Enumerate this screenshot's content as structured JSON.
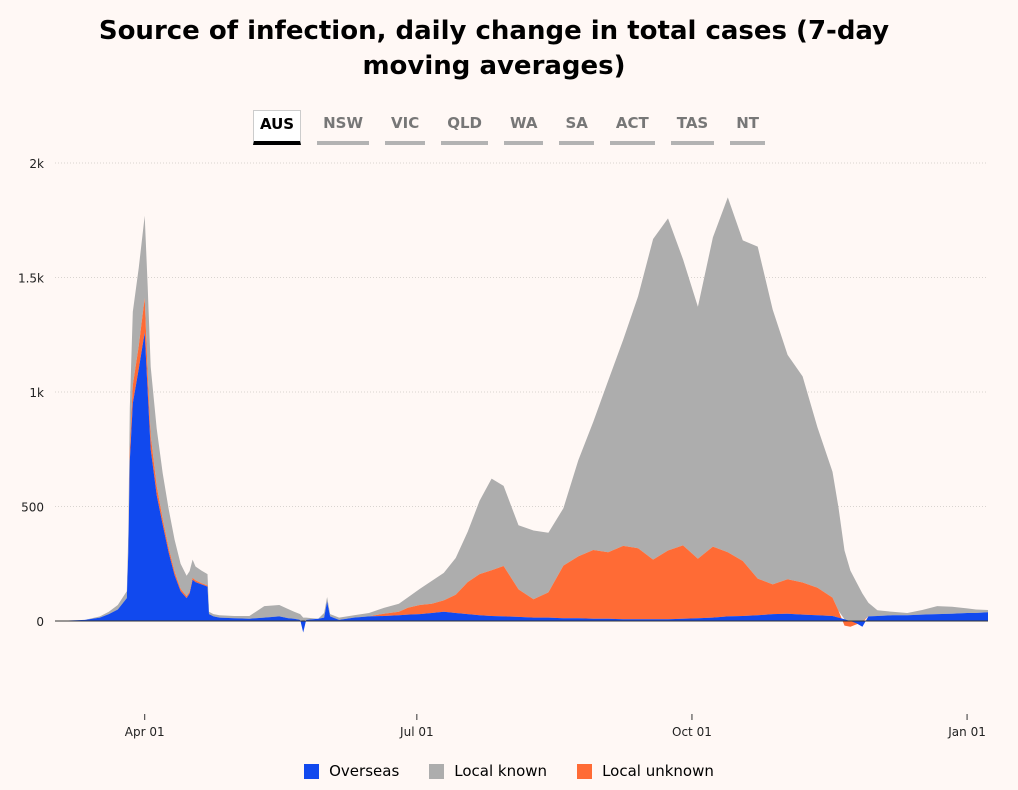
{
  "colors": {
    "overseas": "#1149ee",
    "local_known": "#adadad",
    "local_unknown": "#ff6b35",
    "grid": "#d9d4d0",
    "axis": "#222222"
  },
  "tabs": [
    {
      "label": "AUS",
      "active": true
    },
    {
      "label": "NSW",
      "active": false
    },
    {
      "label": "VIC",
      "active": false
    },
    {
      "label": "QLD",
      "active": false
    },
    {
      "label": "WA",
      "active": false
    },
    {
      "label": "SA",
      "active": false
    },
    {
      "label": "ACT",
      "active": false
    },
    {
      "label": "TAS",
      "active": false
    },
    {
      "label": "NT",
      "active": false
    }
  ],
  "chart_data": {
    "type": "area",
    "title": "Source of infection, daily change in total cases (7-day moving averages)",
    "xlabel": "",
    "ylabel": "",
    "ylim": [
      -220,
      2000
    ],
    "xlim_days": [
      0,
      312
    ],
    "y_ticks": [
      {
        "value": 0,
        "label": "0"
      },
      {
        "value": 500,
        "label": "500"
      },
      {
        "value": 1000,
        "label": "1k"
      },
      {
        "value": 1500,
        "label": "1.5k"
      },
      {
        "value": 2000,
        "label": "2k"
      }
    ],
    "x_ticks": [
      {
        "day": 30,
        "label": "Apr 01"
      },
      {
        "day": 121,
        "label": "Jul 01"
      },
      {
        "day": 213,
        "label": "Oct 01"
      },
      {
        "day": 305,
        "label": "Jan 01"
      }
    ],
    "x_day_label": "days since Mar 02",
    "series": [
      {
        "name": "Overseas",
        "key": "overseas",
        "points": [
          [
            0,
            0
          ],
          [
            10,
            5
          ],
          [
            15,
            15
          ],
          [
            18,
            30
          ],
          [
            21,
            50
          ],
          [
            24,
            100
          ],
          [
            24.5,
            300
          ],
          [
            25,
            700
          ],
          [
            26,
            950
          ],
          [
            28,
            1100
          ],
          [
            30,
            1260
          ],
          [
            31,
            1000
          ],
          [
            32,
            750
          ],
          [
            34,
            550
          ],
          [
            36,
            420
          ],
          [
            38,
            300
          ],
          [
            40,
            200
          ],
          [
            42,
            130
          ],
          [
            44,
            100
          ],
          [
            45,
            120
          ],
          [
            46,
            180
          ],
          [
            47,
            170
          ],
          [
            49,
            160
          ],
          [
            51,
            150
          ],
          [
            51.5,
            30
          ],
          [
            53,
            20
          ],
          [
            55,
            15
          ],
          [
            60,
            12
          ],
          [
            65,
            10
          ],
          [
            70,
            15
          ],
          [
            75,
            20
          ],
          [
            78,
            12
          ],
          [
            80,
            10
          ],
          [
            82,
            5
          ],
          [
            83,
            -50
          ],
          [
            84,
            5
          ],
          [
            88,
            10
          ],
          [
            90,
            15
          ],
          [
            91,
            85
          ],
          [
            92,
            20
          ],
          [
            93,
            15
          ],
          [
            95,
            5
          ],
          [
            100,
            15
          ],
          [
            105,
            20
          ],
          [
            110,
            22
          ],
          [
            115,
            25
          ],
          [
            118,
            28
          ],
          [
            122,
            30
          ],
          [
            126,
            35
          ],
          [
            130,
            40
          ],
          [
            134,
            35
          ],
          [
            138,
            30
          ],
          [
            142,
            25
          ],
          [
            146,
            22
          ],
          [
            150,
            20
          ],
          [
            155,
            18
          ],
          [
            160,
            15
          ],
          [
            165,
            15
          ],
          [
            170,
            12
          ],
          [
            175,
            12
          ],
          [
            180,
            10
          ],
          [
            185,
            10
          ],
          [
            190,
            8
          ],
          [
            195,
            8
          ],
          [
            200,
            8
          ],
          [
            205,
            8
          ],
          [
            210,
            10
          ],
          [
            215,
            12
          ],
          [
            220,
            15
          ],
          [
            225,
            20
          ],
          [
            230,
            22
          ],
          [
            235,
            25
          ],
          [
            240,
            30
          ],
          [
            245,
            32
          ],
          [
            250,
            28
          ],
          [
            255,
            25
          ],
          [
            260,
            22
          ],
          [
            262,
            15
          ],
          [
            264,
            8
          ],
          [
            266,
            0
          ],
          [
            268,
            -10
          ],
          [
            270,
            -25
          ],
          [
            272,
            20
          ],
          [
            275,
            22
          ],
          [
            280,
            25
          ],
          [
            285,
            25
          ],
          [
            290,
            28
          ],
          [
            295,
            30
          ],
          [
            300,
            32
          ],
          [
            305,
            35
          ],
          [
            308,
            35
          ],
          [
            312,
            38
          ]
        ]
      },
      {
        "name": "Local known",
        "key": "local_known",
        "points": [
          [
            0,
            0
          ],
          [
            10,
            0
          ],
          [
            15,
            5
          ],
          [
            18,
            10
          ],
          [
            21,
            20
          ],
          [
            24,
            30
          ],
          [
            24.5,
            80
          ],
          [
            25,
            180
          ],
          [
            26,
            320
          ],
          [
            28,
            340
          ],
          [
            30,
            360
          ],
          [
            31,
            380
          ],
          [
            32,
            300
          ],
          [
            34,
            250
          ],
          [
            36,
            200
          ],
          [
            38,
            170
          ],
          [
            40,
            140
          ],
          [
            42,
            110
          ],
          [
            44,
            90
          ],
          [
            45,
            90
          ],
          [
            46,
            80
          ],
          [
            47,
            60
          ],
          [
            49,
            55
          ],
          [
            51,
            50
          ],
          [
            51.5,
            10
          ],
          [
            53,
            10
          ],
          [
            55,
            10
          ],
          [
            60,
            10
          ],
          [
            65,
            12
          ],
          [
            66,
            50
          ],
          [
            70,
            50
          ],
          [
            72,
            40
          ],
          [
            75,
            30
          ],
          [
            78,
            25
          ],
          [
            80,
            15
          ],
          [
            82,
            10
          ],
          [
            83,
            0
          ],
          [
            84,
            20
          ],
          [
            88,
            20
          ],
          [
            90,
            10
          ],
          [
            91,
            10
          ],
          [
            92,
            10
          ],
          [
            93,
            10
          ],
          [
            95,
            15
          ],
          [
            100,
            25
          ],
          [
            105,
            35
          ],
          [
            110,
            45
          ],
          [
            115,
            70
          ],
          [
            118,
            100
          ],
          [
            122,
            120
          ],
          [
            126,
            160
          ],
          [
            128,
            220
          ],
          [
            130,
            320
          ],
          [
            132,
            400
          ],
          [
            134,
            350
          ],
          [
            136,
            280
          ],
          [
            138,
            300
          ],
          [
            140,
            260
          ],
          [
            142,
            250
          ],
          [
            144,
            420
          ],
          [
            146,
            560
          ],
          [
            148,
            750
          ],
          [
            150,
            900
          ],
          [
            152,
            1100
          ],
          [
            154,
            1400
          ],
          [
            156,
            1450
          ],
          [
            158,
            1250
          ],
          [
            160,
            1100
          ],
          [
            162,
            1350
          ],
          [
            164,
            1550
          ],
          [
            166,
            1400
          ],
          [
            168,
            1450
          ],
          [
            170,
            1200
          ],
          [
            172,
            980
          ],
          [
            174,
            900
          ],
          [
            176,
            700
          ],
          [
            178,
            550
          ],
          [
            180,
            450
          ],
          [
            185,
            300
          ],
          [
            190,
            220
          ],
          [
            195,
            170
          ],
          [
            200,
            120
          ],
          [
            205,
            60
          ],
          [
            210,
            25
          ],
          [
            213,
            15
          ],
          [
            215,
            10
          ],
          [
            220,
            20
          ],
          [
            225,
            35
          ],
          [
            230,
            30
          ],
          [
            235,
            20
          ],
          [
            240,
            15
          ],
          [
            245,
            10
          ],
          [
            250,
            8
          ],
          [
            255,
            10
          ],
          [
            260,
            8
          ],
          [
            262,
            250
          ],
          [
            264,
            250
          ],
          [
            266,
            260
          ],
          [
            268,
            262
          ],
          [
            270,
            -30
          ],
          [
            272,
            5
          ],
          [
            275,
            5
          ],
          [
            280,
            5
          ],
          [
            285,
            5
          ],
          [
            290,
            5
          ],
          [
            293,
            10
          ],
          [
            295,
            40
          ],
          [
            300,
            45
          ],
          [
            305,
            35
          ],
          [
            308,
            10
          ],
          [
            312,
            10
          ]
        ]
      },
      {
        "name": "Local unknown",
        "key": "local_unknown",
        "points": [
          [
            0,
            0
          ],
          [
            10,
            0
          ],
          [
            15,
            0
          ],
          [
            18,
            0
          ],
          [
            21,
            0
          ],
          [
            24,
            0
          ],
          [
            24.5,
            0
          ],
          [
            25,
            50
          ],
          [
            26,
            80
          ],
          [
            28,
            100
          ],
          [
            30,
            150
          ],
          [
            31,
            80
          ],
          [
            32,
            60
          ],
          [
            34,
            40
          ],
          [
            36,
            25
          ],
          [
            38,
            20
          ],
          [
            40,
            15
          ],
          [
            42,
            10
          ],
          [
            44,
            8
          ],
          [
            45,
            8
          ],
          [
            46,
            8
          ],
          [
            47,
            8
          ],
          [
            49,
            5
          ],
          [
            51,
            5
          ],
          [
            51.5,
            0
          ],
          [
            53,
            0
          ],
          [
            55,
            0
          ],
          [
            60,
            0
          ],
          [
            65,
            0
          ],
          [
            70,
            0
          ],
          [
            75,
            0
          ],
          [
            78,
            0
          ],
          [
            80,
            0
          ],
          [
            82,
            0
          ],
          [
            83,
            0
          ],
          [
            84,
            0
          ],
          [
            88,
            0
          ],
          [
            90,
            0
          ],
          [
            91,
            0
          ],
          [
            92,
            0
          ],
          [
            93,
            0
          ],
          [
            95,
            0
          ],
          [
            100,
            0
          ],
          [
            105,
            0
          ],
          [
            110,
            10
          ],
          [
            115,
            15
          ],
          [
            118,
            30
          ],
          [
            122,
            40
          ],
          [
            126,
            40
          ],
          [
            128,
            50
          ],
          [
            130,
            80
          ],
          [
            132,
            140
          ],
          [
            134,
            180
          ],
          [
            136,
            200
          ],
          [
            138,
            220
          ],
          [
            140,
            120
          ],
          [
            142,
            80
          ],
          [
            144,
            110
          ],
          [
            146,
            230
          ],
          [
            148,
            270
          ],
          [
            150,
            300
          ],
          [
            152,
            290
          ],
          [
            154,
            320
          ],
          [
            156,
            310
          ],
          [
            158,
            260
          ],
          [
            160,
            300
          ],
          [
            162,
            320
          ],
          [
            164,
            260
          ],
          [
            166,
            310
          ],
          [
            168,
            280
          ],
          [
            170,
            240
          ],
          [
            172,
            160
          ],
          [
            174,
            130
          ],
          [
            176,
            150
          ],
          [
            178,
            140
          ],
          [
            180,
            120
          ],
          [
            185,
            80
          ],
          [
            190,
            30
          ],
          [
            195,
            -20
          ],
          [
            200,
            -25
          ],
          [
            205,
            -15
          ],
          [
            210,
            -5
          ],
          [
            213,
            0
          ],
          [
            215,
            0
          ],
          [
            220,
            0
          ],
          [
            225,
            0
          ],
          [
            230,
            0
          ],
          [
            235,
            0
          ],
          [
            240,
            0
          ],
          [
            245,
            0
          ],
          [
            250,
            0
          ],
          [
            255,
            0
          ],
          [
            260,
            0
          ],
          [
            262,
            -220
          ],
          [
            264,
            -220
          ],
          [
            266,
            -220
          ],
          [
            268,
            -220
          ],
          [
            270,
            30
          ],
          [
            272,
            0
          ],
          [
            275,
            0
          ],
          [
            280,
            0
          ],
          [
            285,
            0
          ],
          [
            290,
            0
          ],
          [
            293,
            0
          ],
          [
            295,
            0
          ],
          [
            300,
            0
          ],
          [
            305,
            0
          ],
          [
            308,
            0
          ],
          [
            312,
            0
          ]
        ]
      }
    ]
  },
  "legend": [
    {
      "label": "Overseas",
      "key": "overseas"
    },
    {
      "label": "Local known",
      "key": "local_known"
    },
    {
      "label": "Local unknown",
      "key": "local_unknown"
    }
  ]
}
